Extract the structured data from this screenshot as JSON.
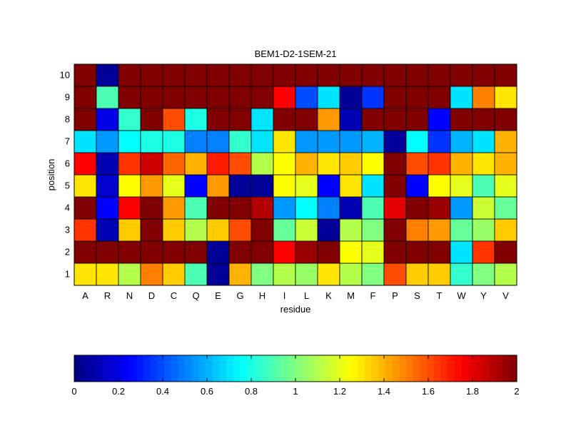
{
  "chart_data": {
    "type": "heatmap",
    "title": "BEM1-D2-1SEM-21",
    "xlabel": "residue",
    "ylabel": "position",
    "x_categories": [
      "A",
      "R",
      "N",
      "D",
      "C",
      "Q",
      "E",
      "G",
      "H",
      "I",
      "L",
      "K",
      "M",
      "F",
      "P",
      "S",
      "T",
      "W",
      "Y",
      "V"
    ],
    "y_categories": [
      "1",
      "2",
      "3",
      "4",
      "5",
      "6",
      "7",
      "8",
      "9",
      "10"
    ],
    "values": [
      [
        1.3,
        1.3,
        1.1,
        1.5,
        1.35,
        0.9,
        0.05,
        1.4,
        1.0,
        1.1,
        1.05,
        1.3,
        1.1,
        1.0,
        1.6,
        1.35,
        1.35,
        0.85,
        1.0,
        1.1
      ],
      [
        2.0,
        2.0,
        2.0,
        2.0,
        2.0,
        2.0,
        0.05,
        2.0,
        2.0,
        1.75,
        1.95,
        2.0,
        1.25,
        1.2,
        2.0,
        2.0,
        2.0,
        0.7,
        1.65,
        2.0
      ],
      [
        1.65,
        0.1,
        1.35,
        2.0,
        1.35,
        1.1,
        1.35,
        1.6,
        2.0,
        0.95,
        1.15,
        0.05,
        1.1,
        1.0,
        2.0,
        1.5,
        1.45,
        0.95,
        1.05,
        1.35
      ],
      [
        2.0,
        0.25,
        1.75,
        2.0,
        1.45,
        0.9,
        2.0,
        2.0,
        1.9,
        0.55,
        0.75,
        0.5,
        0.1,
        0.9,
        1.8,
        2.0,
        1.95,
        0.55,
        1.15,
        0.95
      ],
      [
        1.3,
        0.15,
        1.25,
        1.45,
        1.2,
        0.25,
        1.45,
        0.05,
        0.05,
        1.25,
        1.2,
        0.25,
        1.3,
        0.7,
        2.0,
        0.25,
        1.25,
        1.2,
        0.9,
        1.2
      ],
      [
        1.75,
        0.1,
        1.65,
        1.85,
        1.55,
        1.4,
        1.7,
        1.6,
        1.1,
        1.25,
        1.4,
        1.3,
        1.35,
        1.25,
        2.0,
        1.6,
        1.65,
        1.4,
        1.3,
        1.4
      ],
      [
        0.7,
        0.55,
        0.75,
        0.8,
        0.8,
        0.5,
        0.5,
        0.85,
        0.7,
        1.3,
        0.55,
        0.55,
        0.55,
        0.6,
        0.05,
        0.75,
        0.35,
        0.6,
        0.7,
        1.4
      ],
      [
        2.0,
        0.2,
        0.85,
        2.0,
        1.6,
        0.8,
        2.0,
        2.0,
        0.7,
        2.0,
        2.0,
        1.45,
        0.1,
        2.0,
        2.0,
        2.0,
        0.25,
        2.0,
        2.0,
        2.0
      ],
      [
        2.0,
        0.9,
        2.0,
        2.0,
        2.0,
        2.0,
        2.0,
        2.0,
        2.0,
        1.75,
        0.4,
        0.7,
        0.05,
        0.35,
        2.0,
        2.0,
        2.0,
        0.7,
        1.5,
        1.3
      ],
      [
        2.0,
        0.05,
        2.0,
        2.0,
        2.0,
        2.0,
        2.0,
        2.0,
        2.0,
        2.0,
        2.0,
        2.0,
        2.0,
        2.0,
        2.0,
        2.0,
        2.0,
        2.0,
        2.0,
        2.0
      ]
    ],
    "clim": [
      0,
      2
    ],
    "colormap": "jet",
    "colorbar": {
      "placement": "bottom",
      "ticks": [
        "0",
        "0.2",
        "0.4",
        "0.6",
        "0.8",
        "1",
        "1.2",
        "1.4",
        "1.6",
        "1.8",
        "2"
      ]
    },
    "grid": true
  }
}
